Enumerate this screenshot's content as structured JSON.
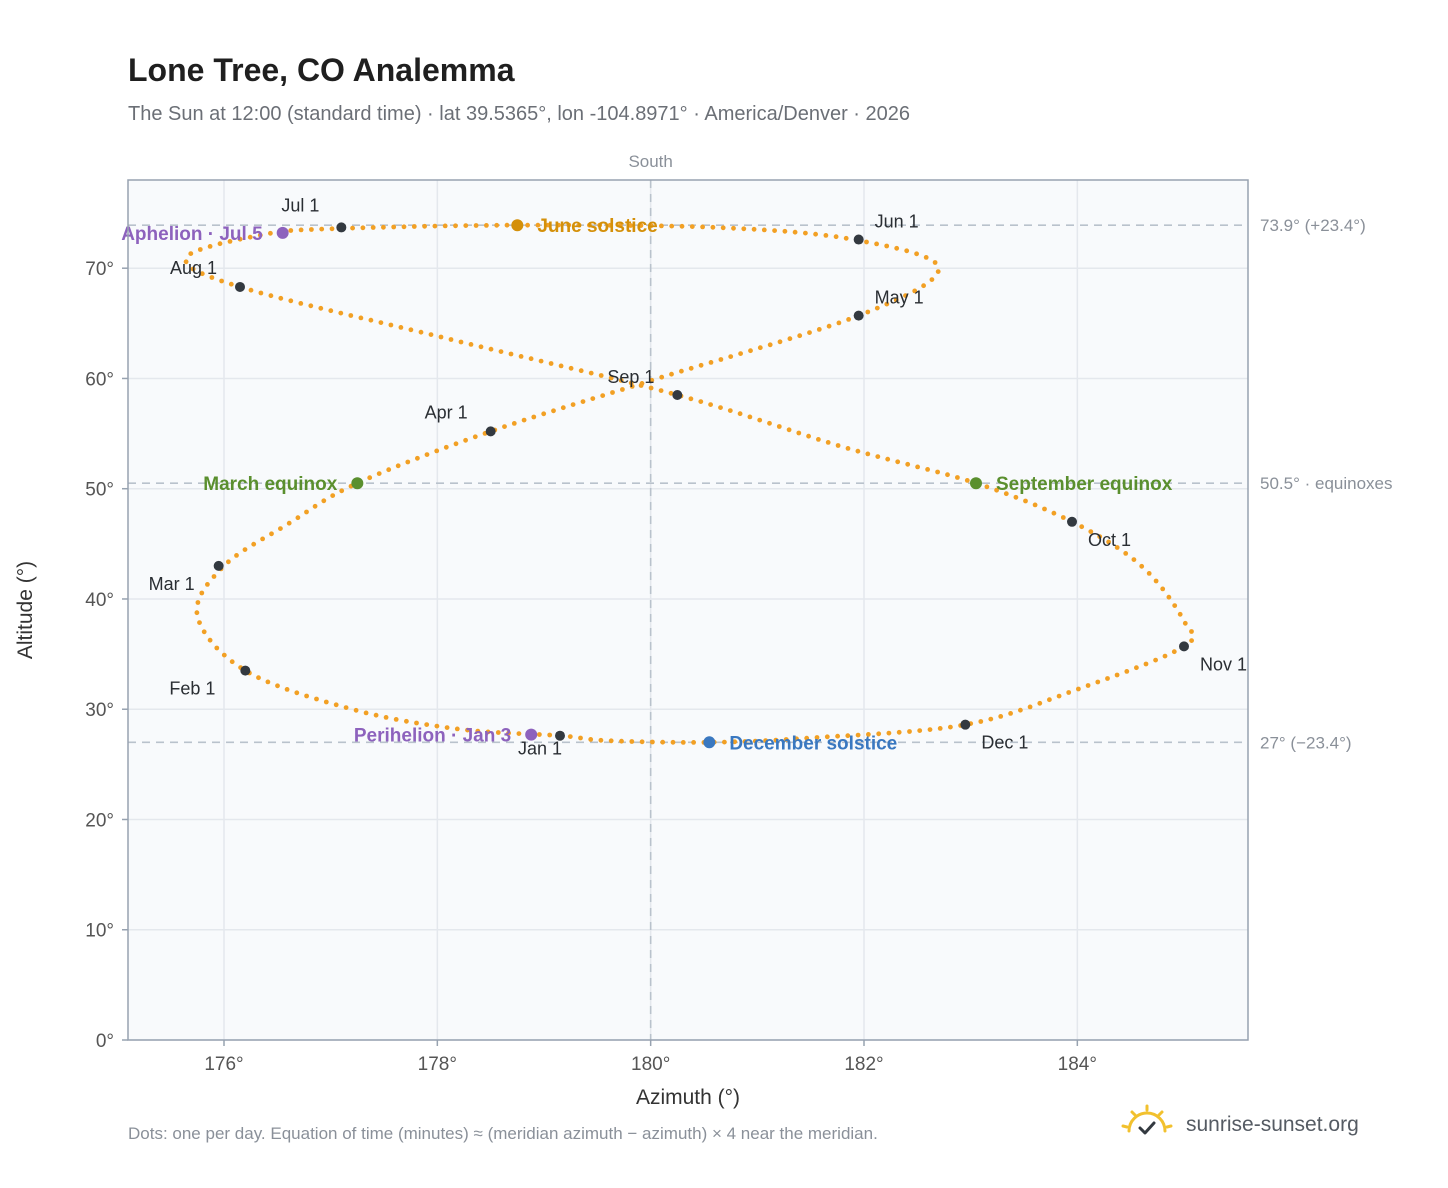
{
  "header": {
    "title": "Lone Tree, CO Analemma",
    "subtitle": "The Sun at 12:00 (standard time) · lat 39.5365°, lon -104.8971° · America/Denver · 2026"
  },
  "footer": {
    "note": "Dots: one per day. Equation of time (minutes) ≈ (meridian azimuth − azimuth) × 4 near the meridian.",
    "brand": "sunrise-sunset.org"
  },
  "colors": {
    "curve": "#f2a024",
    "month_marker": "#333940",
    "solstice_june": "#d4900a",
    "solstice_december": "#3a78c0",
    "equinox": "#5a8f2e",
    "apsis": "#8d62bd",
    "reference_line": "#b9c2cc",
    "plot_background": "#f8fafc",
    "grid": "#e4e8ed",
    "axis_border": "#97a2b0",
    "logo": "#f2c12e"
  },
  "chart_data": {
    "type": "scatter",
    "xlabel": "Azimuth (°)",
    "ylabel": "Altitude (°)",
    "xlim": [
      175.1,
      185.6
    ],
    "ylim": [
      0,
      78
    ],
    "xticks": [
      176,
      178,
      180,
      182,
      184
    ],
    "xtick_labels": [
      "176°",
      "178°",
      "180°",
      "182°",
      "184°"
    ],
    "yticks": [
      0,
      10,
      20,
      30,
      40,
      50,
      60,
      70
    ],
    "ytick_labels": [
      "0°",
      "10°",
      "20°",
      "30°",
      "40°",
      "50°",
      "60°",
      "70°"
    ],
    "grid": true,
    "meridian": {
      "x": 180,
      "label": "South"
    },
    "reference_lines": [
      {
        "y": 73.9,
        "label": "73.9° (+23.4°)"
      },
      {
        "y": 50.5,
        "label": "50.5° · equinoxes"
      },
      {
        "y": 27.0,
        "label": "27° (−23.4°)"
      }
    ],
    "daily_path": {
      "description_hidden": false,
      "waypoints": [
        [
          179.15,
          27.6
        ],
        [
          178.2,
          28.2
        ],
        [
          177.2,
          30.0
        ],
        [
          176.2,
          33.5
        ],
        [
          175.75,
          38.5
        ],
        [
          176.0,
          43.0
        ],
        [
          176.6,
          46.8
        ],
        [
          177.25,
          50.5
        ],
        [
          178.5,
          55.2
        ],
        [
          180.0,
          59.8
        ],
        [
          181.95,
          65.7
        ],
        [
          182.7,
          70.0
        ],
        [
          181.9,
          72.6
        ],
        [
          180.6,
          73.7
        ],
        [
          178.75,
          73.9
        ],
        [
          177.1,
          73.6
        ],
        [
          176.4,
          73.1
        ],
        [
          175.65,
          71.0
        ],
        [
          176.15,
          68.3
        ],
        [
          178.1,
          63.6
        ],
        [
          180.25,
          58.5
        ],
        [
          181.8,
          53.8
        ],
        [
          183.05,
          50.5
        ],
        [
          183.95,
          47.0
        ],
        [
          184.6,
          43.0
        ],
        [
          185.0,
          38.0
        ],
        [
          185.0,
          35.7
        ],
        [
          184.0,
          31.8
        ],
        [
          182.95,
          28.6
        ],
        [
          181.5,
          27.4
        ],
        [
          180.55,
          27.0
        ],
        [
          179.6,
          27.15
        ],
        [
          179.15,
          27.6
        ]
      ]
    },
    "month_markers": [
      {
        "label": "Jan 1",
        "x": 179.15,
        "y": 27.6
      },
      {
        "label": "Feb 1",
        "x": 176.2,
        "y": 33.5
      },
      {
        "label": "Mar 1",
        "x": 175.95,
        "y": 43.0
      },
      {
        "label": "Apr 1",
        "x": 178.5,
        "y": 55.2
      },
      {
        "label": "May 1",
        "x": 181.95,
        "y": 65.7
      },
      {
        "label": "Jun 1",
        "x": 181.95,
        "y": 72.6
      },
      {
        "label": "Jul 1",
        "x": 177.1,
        "y": 73.7
      },
      {
        "label": "Aug 1",
        "x": 176.15,
        "y": 68.3
      },
      {
        "label": "Sep 1",
        "x": 180.25,
        "y": 58.5
      },
      {
        "label": "Oct 1",
        "x": 183.95,
        "y": 47.0
      },
      {
        "label": "Nov 1",
        "x": 185.0,
        "y": 35.7
      },
      {
        "label": "Dec 1",
        "x": 182.95,
        "y": 28.6
      }
    ],
    "events": [
      {
        "label": "June solstice",
        "x": 178.75,
        "y": 73.9,
        "color_key": "solstice_june"
      },
      {
        "label": "December solstice",
        "x": 180.55,
        "y": 27.0,
        "color_key": "solstice_december"
      },
      {
        "label": "March equinox",
        "x": 177.25,
        "y": 50.5,
        "color_key": "equinox"
      },
      {
        "label": "September equinox",
        "x": 183.05,
        "y": 50.5,
        "color_key": "equinox"
      },
      {
        "label": "Aphelion · Jul 5",
        "x": 176.55,
        "y": 73.2,
        "color_key": "apsis"
      },
      {
        "label": "Perihelion · Jan 3",
        "x": 178.88,
        "y": 27.7,
        "color_key": "apsis"
      }
    ]
  }
}
